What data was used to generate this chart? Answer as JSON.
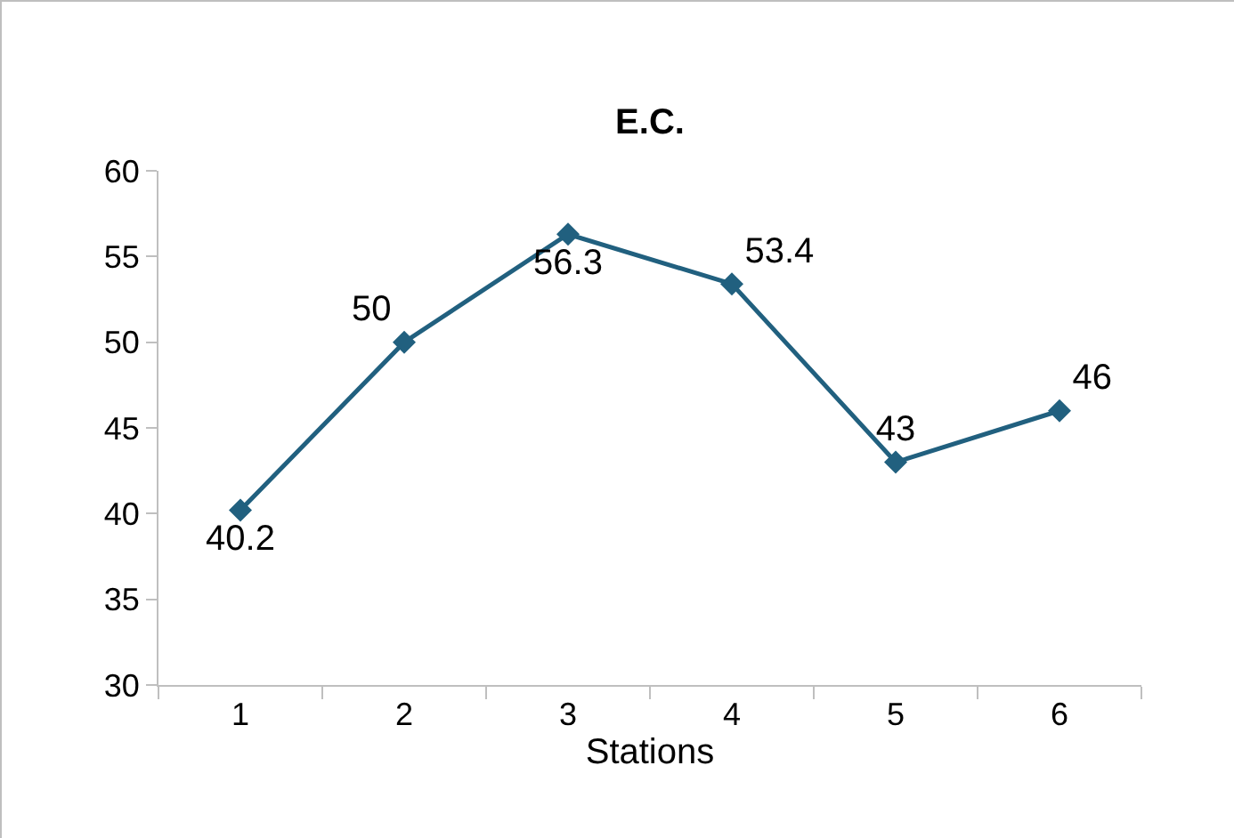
{
  "chart_data": {
    "type": "line",
    "title": "E.C.",
    "xlabel": "Stations",
    "categories": [
      "1",
      "2",
      "3",
      "4",
      "5",
      "6"
    ],
    "series": [
      {
        "color": "#21607f",
        "values": [
          40.2,
          50,
          56.3,
          53.4,
          43,
          46
        ]
      }
    ],
    "ylim": [
      30,
      60
    ],
    "yticks": [
      30,
      35,
      40,
      45,
      50,
      55,
      60
    ],
    "grid": false,
    "legend": false,
    "marker": "diamond",
    "line_style": "solid",
    "data_labels": true
  }
}
